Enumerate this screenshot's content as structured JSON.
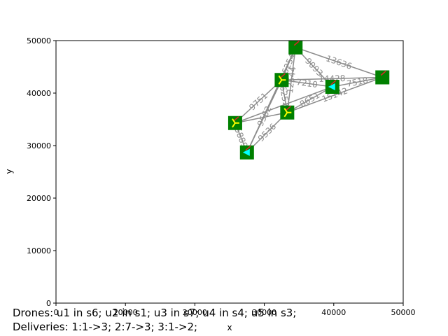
{
  "chart_data": {
    "type": "scatter",
    "title": "",
    "xlabel": "x",
    "ylabel": "y",
    "xlim": [
      0,
      50000
    ],
    "ylim": [
      0,
      50000
    ],
    "grid": false,
    "xticks": [
      0,
      10000,
      20000,
      30000,
      40000,
      50000
    ],
    "yticks": [
      0,
      10000,
      20000,
      30000,
      40000,
      50000
    ],
    "nodes": [
      {
        "x": 25800,
        "y": 34300,
        "marker": "yellow-tri"
      },
      {
        "x": 27500,
        "y": 28700,
        "marker": "cyan-triangle"
      },
      {
        "x": 32500,
        "y": 42500,
        "marker": "yellow-tri"
      },
      {
        "x": 33300,
        "y": 36300,
        "marker": "yellow-tri"
      },
      {
        "x": 34500,
        "y": 48700,
        "marker": "none"
      },
      {
        "x": 39800,
        "y": 41200,
        "marker": "cyan-triangle"
      },
      {
        "x": 47000,
        "y": 43000,
        "marker": "none"
      }
    ],
    "edges": [
      {
        "a": 0,
        "b": 1,
        "label": "5889"
      },
      {
        "a": 0,
        "b": 2,
        "label": "9751"
      },
      {
        "a": 0,
        "b": 3,
        "label": ""
      },
      {
        "a": 0,
        "b": 5,
        "label": ""
      },
      {
        "a": 1,
        "b": 2,
        "label": "9562"
      },
      {
        "a": 1,
        "b": 3,
        "label": "9536"
      },
      {
        "a": 1,
        "b": 4,
        "label": ""
      },
      {
        "a": 2,
        "b": 3,
        "label": "6252"
      },
      {
        "a": 2,
        "b": 4,
        "label": "6254"
      },
      {
        "a": 2,
        "b": 5,
        "label": "7210"
      },
      {
        "a": 2,
        "b": 6,
        "label": "14428"
      },
      {
        "a": 3,
        "b": 4,
        "label": "12544"
      },
      {
        "a": 3,
        "b": 5,
        "label": "8651"
      },
      {
        "a": 3,
        "b": 6,
        "label": "15142"
      },
      {
        "a": 4,
        "b": 5,
        "label": "9093"
      },
      {
        "a": 4,
        "b": 6,
        "label": "13636"
      },
      {
        "a": 5,
        "b": 6,
        "label": "7518"
      }
    ]
  },
  "captions": {
    "line1": "Drones: u1 in s6; u2 in s1; u3 in s7; u4 in s4; u5 in s3;",
    "line2": "Deliveries: 1:1->3; 2:7->3; 3:1->2;"
  }
}
